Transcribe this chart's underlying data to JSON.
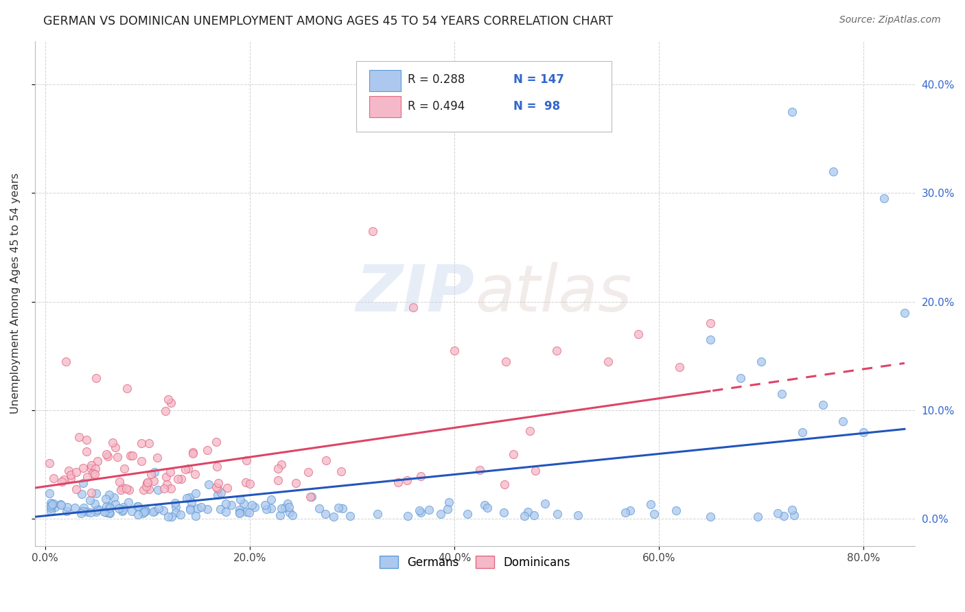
{
  "title": "GERMAN VS DOMINICAN UNEMPLOYMENT AMONG AGES 45 TO 54 YEARS CORRELATION CHART",
  "source": "Source: ZipAtlas.com",
  "xlabel_ticks": [
    "0.0%",
    "20.0%",
    "40.0%",
    "60.0%",
    "80.0%"
  ],
  "xlabel_tick_vals": [
    0.0,
    0.2,
    0.4,
    0.6,
    0.8
  ],
  "ylabel": "Unemployment Among Ages 45 to 54 years",
  "ylabel_ticks": [
    "0.0%",
    "10.0%",
    "20.0%",
    "30.0%",
    "40.0%"
  ],
  "ylabel_tick_vals": [
    0.0,
    0.1,
    0.2,
    0.3,
    0.4
  ],
  "xlim": [
    -0.01,
    0.85
  ],
  "ylim": [
    -0.025,
    0.44
  ],
  "german_color": "#adc8ee",
  "german_edge_color": "#5b9bd5",
  "dominican_color": "#f5b8c8",
  "dominican_edge_color": "#e06880",
  "german_line_color": "#2255bb",
  "dominican_line_color": "#dd4466",
  "legend_german_r": "R = 0.288",
  "legend_german_n": "N = 147",
  "legend_dominican_r": "R = 0.494",
  "legend_dominican_n": "N =  98",
  "german_N": 147,
  "dominican_N": 98,
  "watermark_zip": "ZIP",
  "watermark_atlas": "atlas",
  "background_color": "#ffffff",
  "grid_color": "#cccccc",
  "right_tick_color": "#3366cc",
  "title_color": "#222222",
  "source_color": "#666666"
}
